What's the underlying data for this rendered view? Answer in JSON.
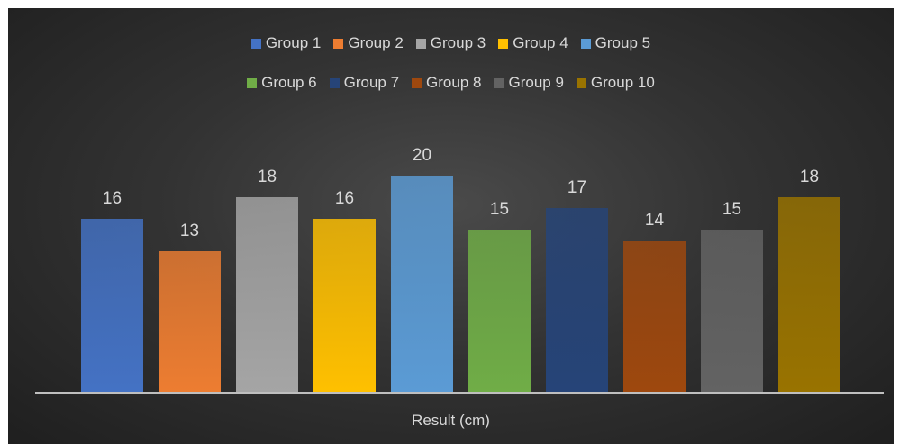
{
  "chart_data": {
    "type": "bar",
    "categories": [
      "Result (cm)"
    ],
    "series": [
      {
        "name": "Group 1",
        "values": [
          16
        ],
        "color": "#4472C4"
      },
      {
        "name": "Group 2",
        "values": [
          13
        ],
        "color": "#ED7D31"
      },
      {
        "name": "Group 3",
        "values": [
          18
        ],
        "color": "#A5A5A5"
      },
      {
        "name": "Group 4",
        "values": [
          16
        ],
        "color": "#FFC000"
      },
      {
        "name": "Group 5",
        "values": [
          20
        ],
        "color": "#5B9BD5"
      },
      {
        "name": "Group 6",
        "values": [
          15
        ],
        "color": "#70AD47"
      },
      {
        "name": "Group 7",
        "values": [
          17
        ],
        "color": "#264478"
      },
      {
        "name": "Group 8",
        "values": [
          14
        ],
        "color": "#9E480E"
      },
      {
        "name": "Group 9",
        "values": [
          15
        ],
        "color": "#636363"
      },
      {
        "name": "Group 10",
        "values": [
          18
        ],
        "color": "#997300"
      }
    ],
    "title": "",
    "xlabel": "Result (cm)",
    "ylabel": "",
    "ylim": [
      0,
      20
    ],
    "grid": false,
    "legend": "top",
    "data_labels": true
  }
}
